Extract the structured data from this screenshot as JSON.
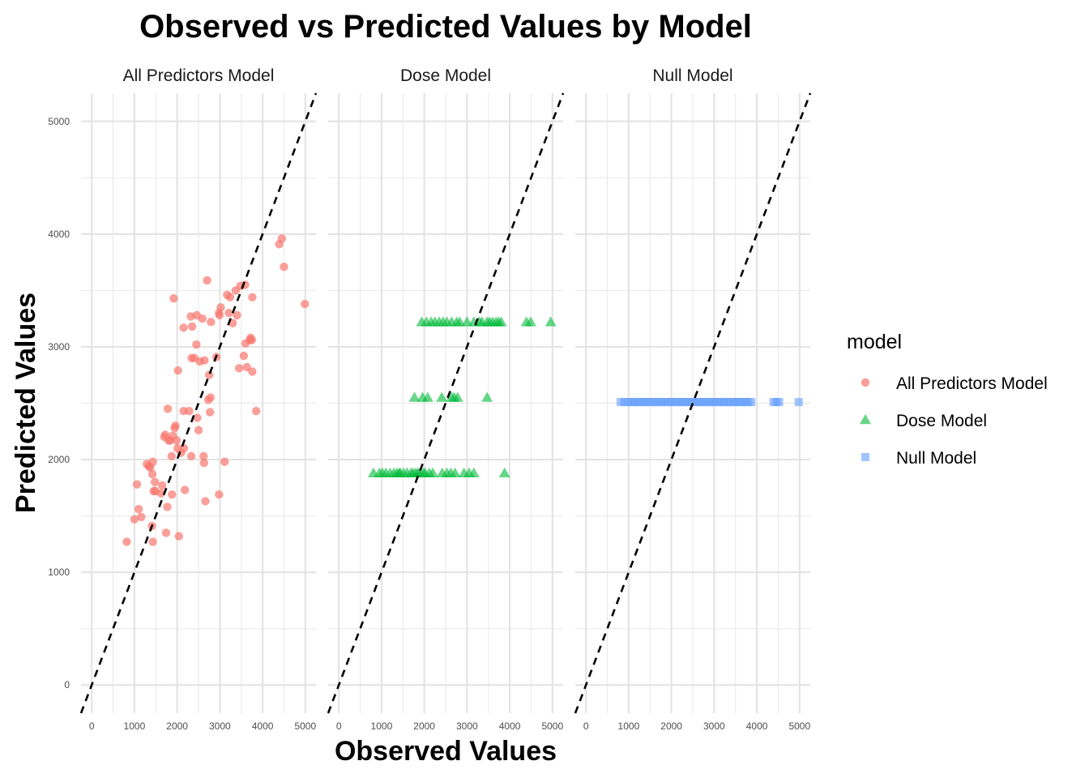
{
  "chart_data": {
    "type": "scatter",
    "title": "Observed vs Predicted Values by Model",
    "xlabel": "Observed Values",
    "ylabel": "Predicted Values",
    "xlim": [
      -250,
      5250
    ],
    "ylim": [
      -250,
      5250
    ],
    "x_ticks": [
      "0",
      "1000",
      "2000",
      "3000",
      "4000",
      "5000"
    ],
    "y_ticks": [
      "0",
      "1000",
      "2000",
      "3000",
      "4000",
      "5000"
    ],
    "grid": true,
    "reference_line": "y = x (dashed)",
    "legend": {
      "title": "model",
      "position": "right"
    },
    "colors": {
      "All Predictors Model": "#F8766D",
      "Dose Model": "#00BA38",
      "Null Model": "#619CFF"
    },
    "panels": [
      {
        "name": "All Predictors Model",
        "marker": "circle",
        "points": [
          [
            820,
            1270
          ],
          [
            1000,
            1470
          ],
          [
            1060,
            1780
          ],
          [
            1100,
            1560
          ],
          [
            1160,
            1490
          ],
          [
            1290,
            1960
          ],
          [
            1340,
            1940
          ],
          [
            1370,
            1930
          ],
          [
            1410,
            1410
          ],
          [
            1420,
            1870
          ],
          [
            1430,
            1980
          ],
          [
            1430,
            1270
          ],
          [
            1450,
            1720
          ],
          [
            1480,
            1800
          ],
          [
            1490,
            1720
          ],
          [
            1620,
            1700
          ],
          [
            1650,
            1770
          ],
          [
            1700,
            2200
          ],
          [
            1720,
            2220
          ],
          [
            1740,
            1350
          ],
          [
            1770,
            1580
          ],
          [
            1780,
            2450
          ],
          [
            1800,
            2170
          ],
          [
            1840,
            2170
          ],
          [
            1870,
            2030
          ],
          [
            1880,
            1690
          ],
          [
            1900,
            2210
          ],
          [
            1940,
            2280
          ],
          [
            1960,
            2300
          ],
          [
            1920,
            3430
          ],
          [
            1990,
            2170
          ],
          [
            2010,
            2100
          ],
          [
            2020,
            2790
          ],
          [
            2040,
            1320
          ],
          [
            2090,
            2060
          ],
          [
            2150,
            2430
          ],
          [
            2160,
            2100
          ],
          [
            2180,
            1730
          ],
          [
            2150,
            3170
          ],
          [
            2280,
            2430
          ],
          [
            2330,
            2030
          ],
          [
            2320,
            3270
          ],
          [
            2350,
            3180
          ],
          [
            2340,
            2900
          ],
          [
            2400,
            2900
          ],
          [
            2460,
            3280
          ],
          [
            2450,
            3020
          ],
          [
            2470,
            2370
          ],
          [
            2500,
            2260
          ],
          [
            2530,
            2870
          ],
          [
            2590,
            3250
          ],
          [
            2620,
            2030
          ],
          [
            2630,
            1970
          ],
          [
            2640,
            2880
          ],
          [
            2660,
            1630
          ],
          [
            2700,
            3590
          ],
          [
            2730,
            2530
          ],
          [
            2750,
            2750
          ],
          [
            2770,
            2420
          ],
          [
            2780,
            2550
          ],
          [
            2790,
            3220
          ],
          [
            2920,
            2910
          ],
          [
            2980,
            3300
          ],
          [
            2980,
            1690
          ],
          [
            2990,
            3280
          ],
          [
            3020,
            3350
          ],
          [
            3110,
            1980
          ],
          [
            3170,
            3460
          ],
          [
            3210,
            3300
          ],
          [
            3240,
            3440
          ],
          [
            3300,
            3210
          ],
          [
            3370,
            3500
          ],
          [
            3400,
            3280
          ],
          [
            3450,
            2810
          ],
          [
            3480,
            3540
          ],
          [
            3560,
            2920
          ],
          [
            3590,
            3550
          ],
          [
            3600,
            3030
          ],
          [
            3630,
            2820
          ],
          [
            3700,
            3060
          ],
          [
            3720,
            3080
          ],
          [
            3750,
            3060
          ],
          [
            3760,
            3440
          ],
          [
            3760,
            2780
          ],
          [
            3850,
            2430
          ],
          [
            4390,
            3910
          ],
          [
            4450,
            3960
          ],
          [
            4500,
            3710
          ],
          [
            4990,
            3380
          ]
        ]
      },
      {
        "name": "Dose Model",
        "marker": "triangle",
        "points": [
          [
            810,
            1880
          ],
          [
            950,
            1880
          ],
          [
            1020,
            1880
          ],
          [
            1100,
            1880
          ],
          [
            1200,
            1880
          ],
          [
            1290,
            1880
          ],
          [
            1360,
            1880
          ],
          [
            1410,
            1880
          ],
          [
            1440,
            1880
          ],
          [
            1520,
            1880
          ],
          [
            1600,
            1880
          ],
          [
            1690,
            1880
          ],
          [
            1740,
            1880
          ],
          [
            1800,
            1880
          ],
          [
            1850,
            1880
          ],
          [
            1900,
            1880
          ],
          [
            1980,
            1880
          ],
          [
            2020,
            1880
          ],
          [
            2120,
            1880
          ],
          [
            2200,
            1880
          ],
          [
            2420,
            1880
          ],
          [
            2530,
            1880
          ],
          [
            2620,
            1880
          ],
          [
            2720,
            1880
          ],
          [
            2930,
            1880
          ],
          [
            3050,
            1880
          ],
          [
            3160,
            1880
          ],
          [
            3880,
            1880
          ],
          [
            1770,
            2550
          ],
          [
            1960,
            2550
          ],
          [
            2080,
            2550
          ],
          [
            2410,
            2550
          ],
          [
            2640,
            2550
          ],
          [
            2700,
            2550
          ],
          [
            2780,
            2550
          ],
          [
            3470,
            2550
          ],
          [
            1940,
            3220
          ],
          [
            2050,
            3220
          ],
          [
            2160,
            3220
          ],
          [
            2250,
            3220
          ],
          [
            2350,
            3220
          ],
          [
            2440,
            3220
          ],
          [
            2530,
            3220
          ],
          [
            2640,
            3220
          ],
          [
            2760,
            3220
          ],
          [
            2830,
            3220
          ],
          [
            3000,
            3220
          ],
          [
            3160,
            3220
          ],
          [
            3290,
            3220
          ],
          [
            3350,
            3220
          ],
          [
            3470,
            3220
          ],
          [
            3530,
            3220
          ],
          [
            3600,
            3220
          ],
          [
            3680,
            3220
          ],
          [
            3740,
            3220
          ],
          [
            3800,
            3220
          ],
          [
            4390,
            3220
          ],
          [
            4490,
            3220
          ],
          [
            4960,
            3220
          ]
        ]
      },
      {
        "name": "Null Model",
        "marker": "square",
        "points": [
          [
            810,
            2510
          ],
          [
            900,
            2510
          ],
          [
            980,
            2510
          ],
          [
            1060,
            2510
          ],
          [
            1130,
            2510
          ],
          [
            1200,
            2510
          ],
          [
            1270,
            2510
          ],
          [
            1340,
            2510
          ],
          [
            1410,
            2510
          ],
          [
            1480,
            2510
          ],
          [
            1560,
            2510
          ],
          [
            1630,
            2510
          ],
          [
            1700,
            2510
          ],
          [
            1770,
            2510
          ],
          [
            1840,
            2510
          ],
          [
            1910,
            2510
          ],
          [
            1980,
            2510
          ],
          [
            2050,
            2510
          ],
          [
            2120,
            2510
          ],
          [
            2190,
            2510
          ],
          [
            2260,
            2510
          ],
          [
            2330,
            2510
          ],
          [
            2400,
            2510
          ],
          [
            2470,
            2510
          ],
          [
            2540,
            2510
          ],
          [
            2610,
            2510
          ],
          [
            2680,
            2510
          ],
          [
            2750,
            2510
          ],
          [
            2820,
            2510
          ],
          [
            2890,
            2510
          ],
          [
            2960,
            2510
          ],
          [
            3030,
            2510
          ],
          [
            3100,
            2510
          ],
          [
            3170,
            2510
          ],
          [
            3240,
            2510
          ],
          [
            3310,
            2510
          ],
          [
            3380,
            2510
          ],
          [
            3450,
            2510
          ],
          [
            3520,
            2510
          ],
          [
            3590,
            2510
          ],
          [
            3660,
            2510
          ],
          [
            3730,
            2510
          ],
          [
            3800,
            2510
          ],
          [
            3870,
            2510
          ],
          [
            4390,
            2510
          ],
          [
            4460,
            2510
          ],
          [
            4520,
            2510
          ],
          [
            4980,
            2510
          ]
        ]
      }
    ]
  }
}
